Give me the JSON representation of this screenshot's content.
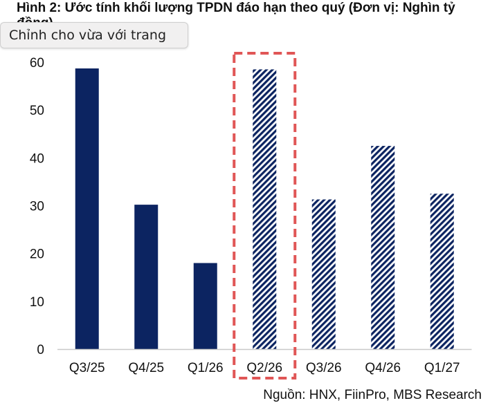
{
  "header": {
    "title": "Hình 2: Ước tính khối lượng TPDN đáo hạn theo quý (Đơn vị: Nghìn tỷ đồng)"
  },
  "tooltip": {
    "text": "Chỉnh cho vừa với trang"
  },
  "footer": {
    "source": "Nguồn: HNX, FiinPro, MBS Research"
  },
  "colors": {
    "bar": "#0c2461",
    "hatch_bg": "#ffffff",
    "highlight": "#e05656",
    "axis": "#c8c8c8"
  },
  "chart_data": {
    "type": "bar",
    "categories": [
      "Q3/25",
      "Q4/25",
      "Q1/26",
      "Q2/26",
      "Q3/26",
      "Q4/26",
      "Q1/27"
    ],
    "values": [
      58.7,
      30.2,
      18.0,
      58.5,
      31.3,
      42.5,
      32.5
    ],
    "estimated": [
      false,
      false,
      false,
      true,
      true,
      true,
      true
    ],
    "highlighted_category": "Q2/26",
    "yticks": [
      0,
      10,
      20,
      30,
      40,
      50,
      60
    ],
    "ylim": [
      0,
      60
    ],
    "grid": false,
    "legend": "none"
  }
}
